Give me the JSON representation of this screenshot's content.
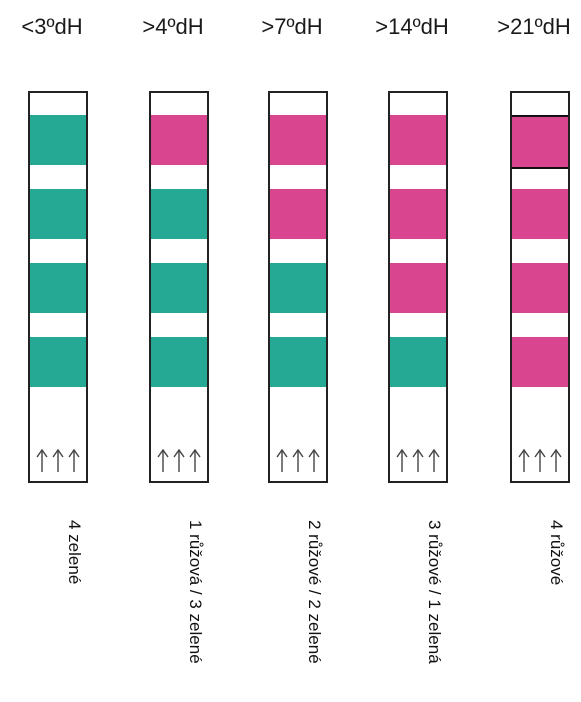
{
  "colors": {
    "green": "#26a994",
    "pink": "#d9468f",
    "outline": "#222222",
    "arrow": "#444444"
  },
  "strips": [
    {
      "header": "<3ºdH",
      "caption": "4 zelené",
      "pads": [
        "green",
        "green",
        "green",
        "green"
      ]
    },
    {
      "header": ">4ºdH",
      "caption": "1 růžová / 3 zelené",
      "pads": [
        "pink",
        "green",
        "green",
        "green"
      ]
    },
    {
      "header": ">7ºdH",
      "caption": "2 růžové / 2 zelené",
      "pads": [
        "pink",
        "pink",
        "green",
        "green"
      ]
    },
    {
      "header": ">14ºdH",
      "caption": "3 růžové / 1 zelená",
      "pads": [
        "pink",
        "pink",
        "pink",
        "green"
      ]
    },
    {
      "header": ">21ºdH",
      "caption": "4 růžové",
      "pads": [
        "pink",
        "pink",
        "pink",
        "pink"
      ]
    }
  ]
}
